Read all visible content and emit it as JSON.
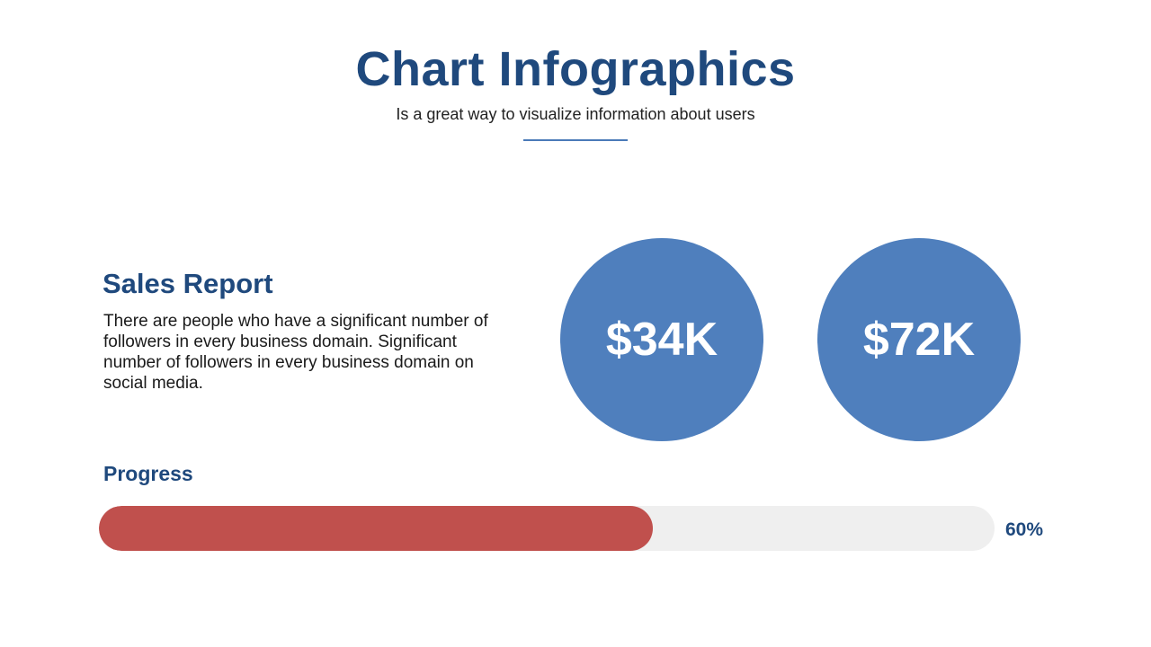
{
  "header": {
    "title": "Chart Infographics",
    "subtitle": "Is a great way to visualize information about users"
  },
  "sales_report": {
    "heading": "Sales Report",
    "description": "There are people who have a significant number of followers in every business domain. Significant number of followers in every business domain on social media."
  },
  "metrics": [
    {
      "value": "$34K"
    },
    {
      "value": "$72K"
    }
  ],
  "progress": {
    "heading": "Progress",
    "percent": 60,
    "label": "60%"
  },
  "colors": {
    "title": "#1f497d",
    "circle": "#4f7fbd",
    "progress_fill": "#c0504d",
    "progress_track": "#efefef"
  }
}
